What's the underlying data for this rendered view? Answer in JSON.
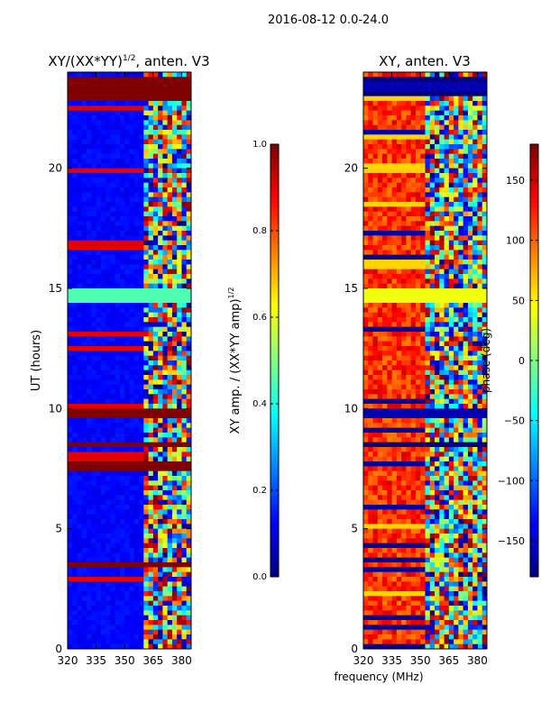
{
  "suptitle": "2016-08-12 0.0-24.0",
  "shared_xlabel": "frequency (MHz)",
  "colors": {
    "jet": [
      "#00007f",
      "#0000ff",
      "#007fff",
      "#00ffff",
      "#7fff7f",
      "#ffff00",
      "#ff7f00",
      "#ff0000",
      "#7f0000"
    ],
    "frame": "#000000",
    "background": "#ffffff"
  },
  "chart_data": [
    {
      "type": "heatmap",
      "title": "XY/(XX*YY)",
      "title_exponent": "1/2",
      "title_suffix": ", anten. V3",
      "xlabel": "",
      "ylabel": "UT (hours)",
      "xlim": [
        320,
        385
      ],
      "ylim": [
        0,
        24
      ],
      "xticks": [
        320,
        335,
        350,
        365,
        380
      ],
      "yticks": [
        0,
        5,
        10,
        15,
        20
      ],
      "colorbar": {
        "label": "XY amp. / (XX*YY amp)",
        "label_exponent": "1/2",
        "range": [
          0.0,
          1.0
        ],
        "ticks": [
          "0.0",
          "0.2",
          "0.4",
          "0.6",
          "0.8",
          "1.0"
        ],
        "tick_values": [
          0.0,
          0.2,
          0.4,
          0.6,
          0.8,
          1.0
        ]
      },
      "saturated_bands_hours": [
        [
          22.9,
          23.8
        ],
        [
          9.6,
          10.0
        ],
        [
          8.4,
          8.6
        ],
        [
          7.4,
          7.7
        ],
        [
          3.4,
          3.6
        ]
      ],
      "bright_feature_hour": 14.7,
      "baseline_value": 0.1,
      "high_freq_noise_start_mhz": 360
    },
    {
      "type": "heatmap",
      "title": "XY, anten. V3",
      "xlabel": "frequency (MHz)",
      "ylabel": "",
      "xlim": [
        320,
        385
      ],
      "ylim": [
        0,
        24
      ],
      "xticks": [
        320,
        335,
        350,
        365,
        380
      ],
      "yticks": [
        0,
        5,
        10,
        15,
        20
      ],
      "colorbar": {
        "label": "phase (deg)",
        "range": [
          -180,
          180
        ],
        "ticks": [
          "150",
          "100",
          "50",
          "0",
          "−50",
          "−100",
          "−150"
        ],
        "tick_values": [
          150,
          100,
          50,
          0,
          -50,
          -100,
          -150
        ]
      },
      "saturated_bands_hours": [
        [
          23.0,
          23.8
        ],
        [
          9.6,
          10.0
        ],
        [
          8.4,
          8.6
        ]
      ],
      "bright_feature_hour": 14.7,
      "baseline_value": 120,
      "high_freq_noise_start_mhz": 352
    }
  ]
}
